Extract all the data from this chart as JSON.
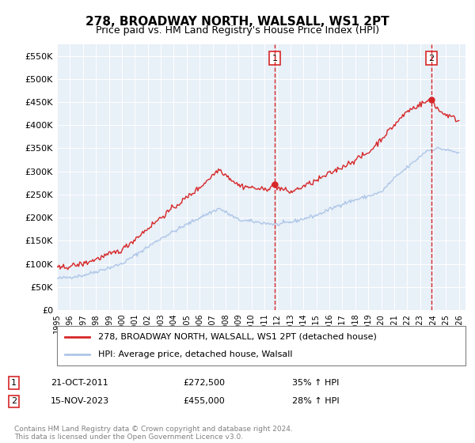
{
  "title": "278, BROADWAY NORTH, WALSALL, WS1 2PT",
  "subtitle": "Price paid vs. HM Land Registry's House Price Index (HPI)",
  "ylabel": "",
  "ylim": [
    0,
    575000
  ],
  "yticks": [
    0,
    50000,
    100000,
    150000,
    200000,
    250000,
    300000,
    350000,
    400000,
    450000,
    500000,
    550000
  ],
  "ytick_labels": [
    "£0",
    "£50K",
    "£100K",
    "£150K",
    "£200K",
    "£250K",
    "£300K",
    "£350K",
    "£400K",
    "£450K",
    "£500K",
    "£550K"
  ],
  "hpi_color": "#aec6e8",
  "price_color": "#d62728",
  "vline_color": "#d62728",
  "marker_color": "#d62728",
  "annotation1_date": "21-OCT-2011",
  "annotation1_price": "£272,500",
  "annotation1_hpi": "35% ↑ HPI",
  "annotation1_label": "1",
  "annotation2_date": "15-NOV-2023",
  "annotation2_price": "£455,000",
  "annotation2_hpi": "28% ↑ HPI",
  "annotation2_label": "2",
  "legend_line1": "278, BROADWAY NORTH, WALSALL, WS1 2PT (detached house)",
  "legend_line2": "HPI: Average price, detached house, Walsall",
  "footer": "Contains HM Land Registry data © Crown copyright and database right 2024.\nThis data is licensed under the Open Government Licence v3.0.",
  "background_color": "#e8f0f8",
  "fig_background": "#ffffff"
}
